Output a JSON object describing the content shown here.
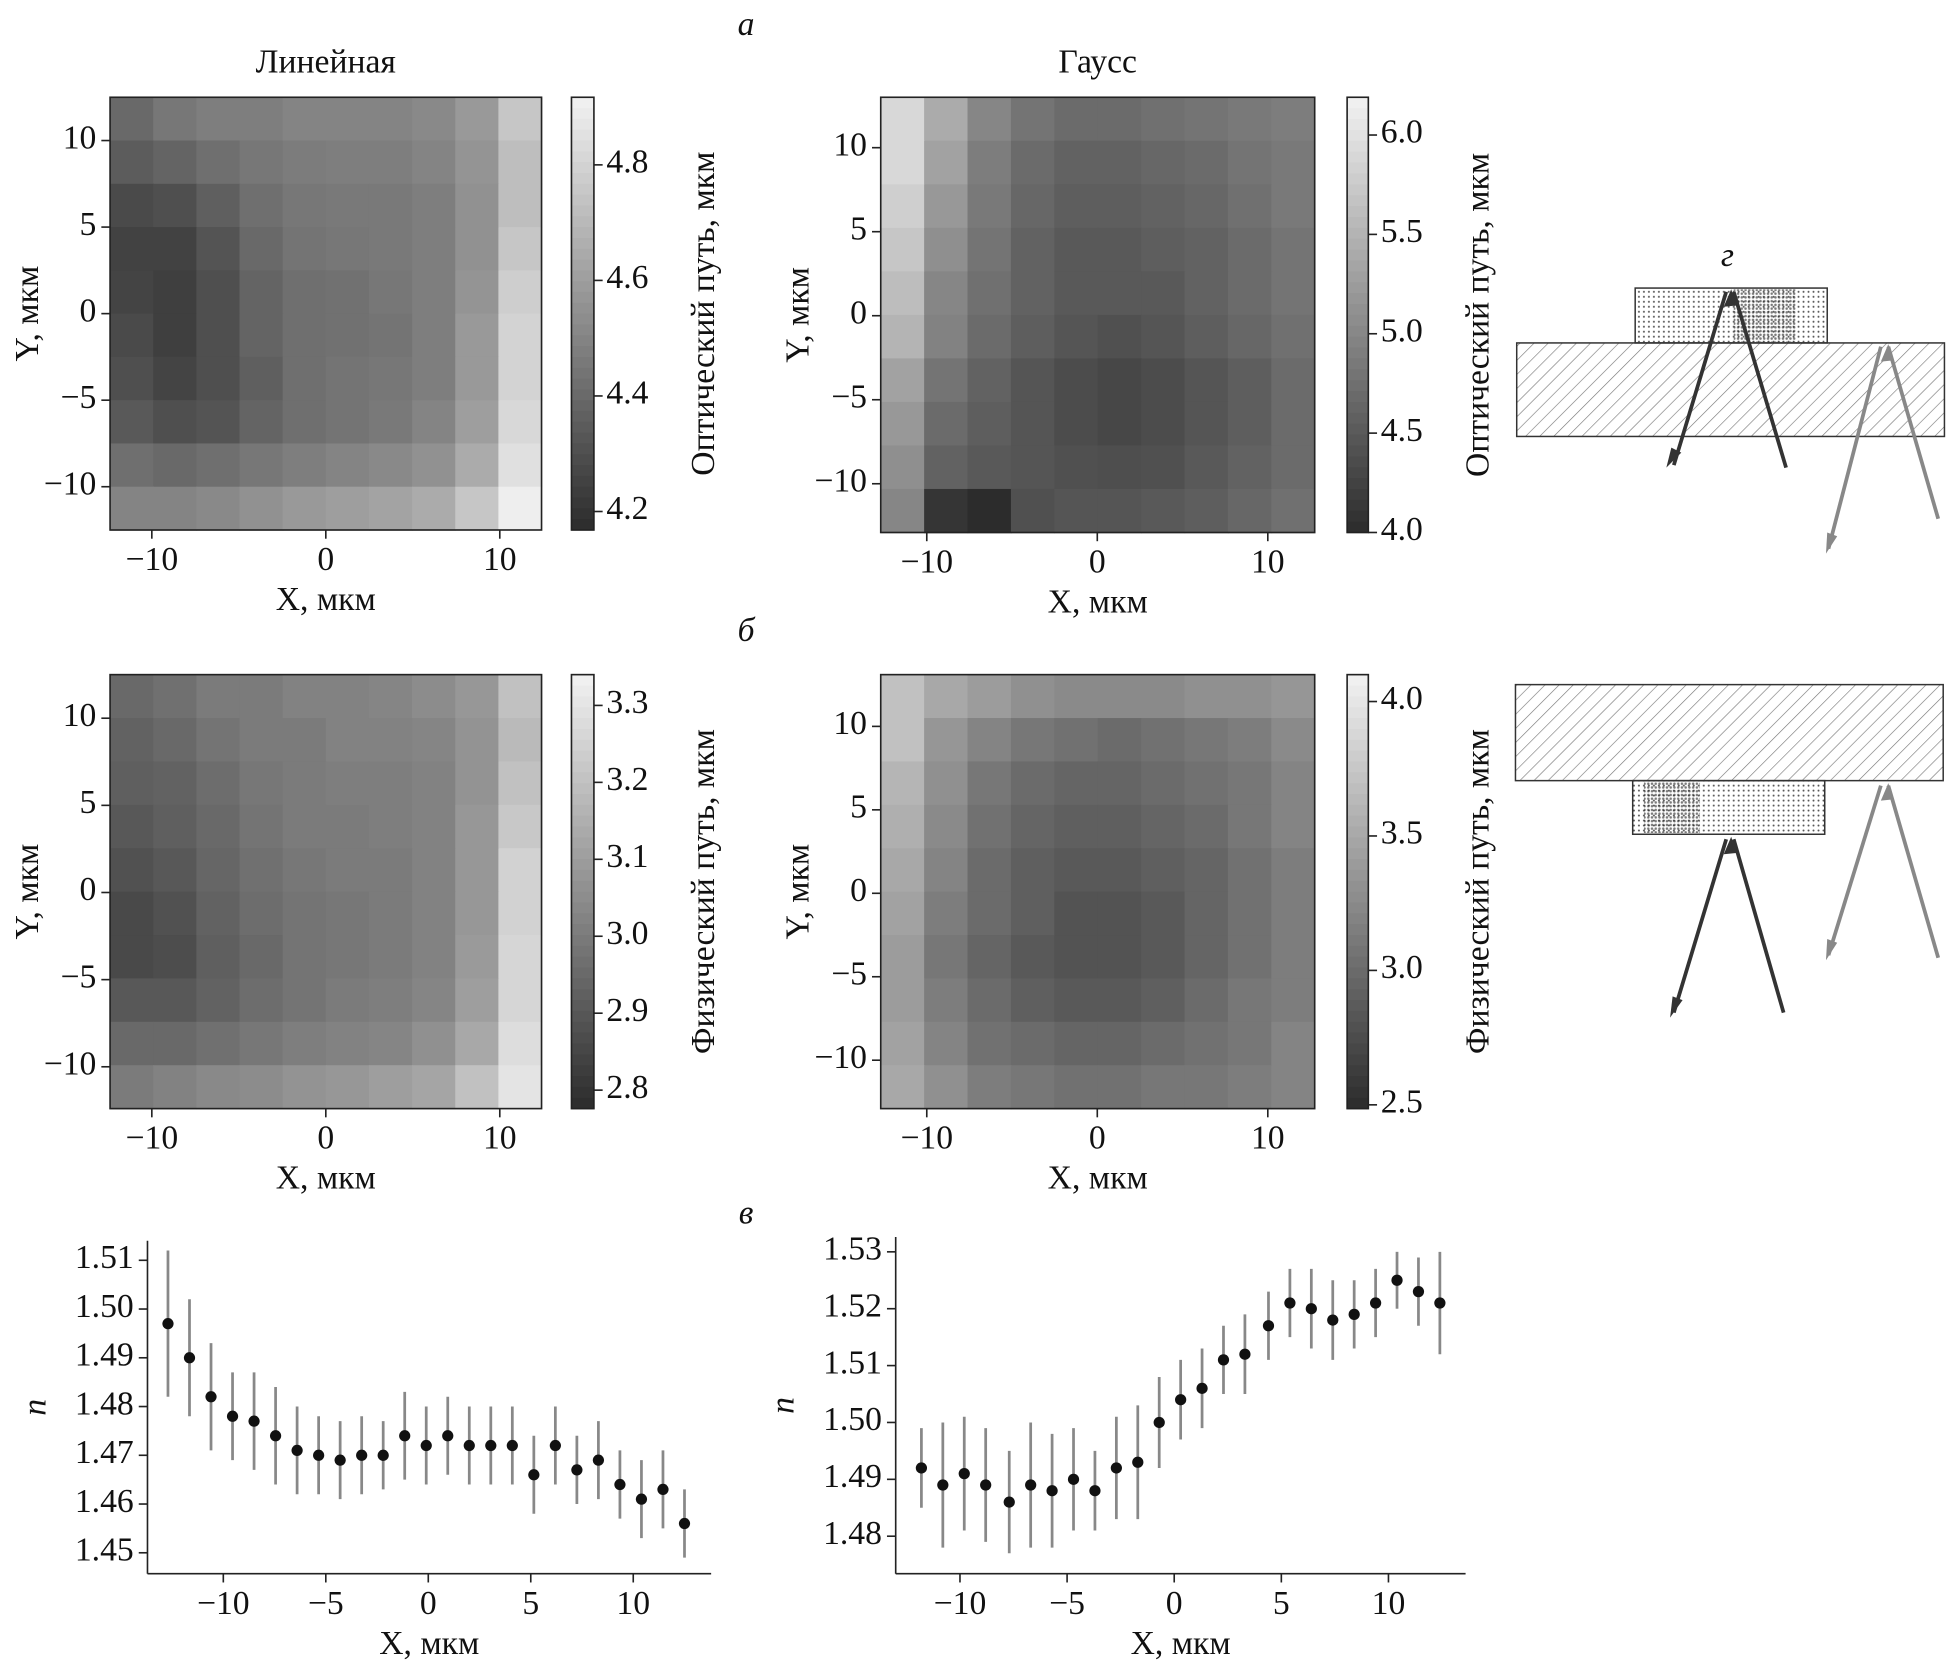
{
  "panel_labels": {
    "a": "а",
    "b": "б",
    "c": "в",
    "d": "г"
  },
  "chart_data": [
    {
      "type": "heatmap",
      "title": "Линейная",
      "xlabel": "X, мкм",
      "ylabel": "Y, мкм",
      "colorbar_label": "Оптический путь, мкм",
      "xlim": [
        -12.4,
        12.4
      ],
      "ylim": [
        -12.5,
        12.5
      ],
      "xticks": [
        {
          "value": -10,
          "label": "−10"
        },
        0,
        10
      ],
      "yticks": [
        10,
        5,
        0,
        {
          "value": -5,
          "label": "−5"
        },
        {
          "value": -10,
          "label": "−10"
        }
      ],
      "zlim": [
        4.168,
        4.917
      ],
      "zticks": [
        4.2,
        4.4,
        4.6,
        4.8
      ],
      "cmap": [
        "#2c2c2c",
        "#f2f2f2"
      ],
      "z": [
        [
          4.4,
          4.45,
          4.48,
          4.48,
          4.5,
          4.5,
          4.5,
          4.52,
          4.58,
          4.75
        ],
        [
          4.35,
          4.38,
          4.42,
          4.45,
          4.47,
          4.48,
          4.48,
          4.5,
          4.56,
          4.72
        ],
        [
          4.28,
          4.3,
          4.36,
          4.42,
          4.45,
          4.46,
          4.46,
          4.48,
          4.55,
          4.72
        ],
        [
          4.25,
          4.25,
          4.32,
          4.4,
          4.44,
          4.45,
          4.46,
          4.48,
          4.55,
          4.75
        ],
        [
          4.26,
          4.24,
          4.3,
          4.38,
          4.42,
          4.43,
          4.45,
          4.48,
          4.56,
          4.78
        ],
        [
          4.28,
          4.24,
          4.3,
          4.38,
          4.42,
          4.43,
          4.44,
          4.48,
          4.58,
          4.8
        ],
        [
          4.3,
          4.26,
          4.3,
          4.36,
          4.42,
          4.44,
          4.45,
          4.48,
          4.58,
          4.8
        ],
        [
          4.34,
          4.3,
          4.32,
          4.38,
          4.42,
          4.44,
          4.46,
          4.5,
          4.6,
          4.82
        ],
        [
          4.42,
          4.4,
          4.42,
          4.45,
          4.48,
          4.5,
          4.52,
          4.55,
          4.65,
          4.85
        ],
        [
          4.5,
          4.5,
          4.52,
          4.55,
          4.58,
          4.6,
          4.62,
          4.65,
          4.75,
          4.9
        ]
      ]
    },
    {
      "type": "heatmap",
      "title": "Гаусс",
      "xlabel": "X, мкм",
      "ylabel": "Y, мкм",
      "colorbar_label": "Оптический путь, мкм",
      "xlim": [
        -12.7,
        12.75
      ],
      "ylim": [
        -12.9,
        13.0
      ],
      "xticks": [
        {
          "value": -10,
          "label": "−10"
        },
        0,
        10
      ],
      "yticks": [
        10,
        5,
        0,
        {
          "value": -5,
          "label": "−5"
        },
        {
          "value": -10,
          "label": "−10"
        }
      ],
      "zlim": [
        4.0,
        6.19
      ],
      "zticks": [
        {
          "value": 4,
          "label": "4.0"
        },
        4.5,
        {
          "value": 5,
          "label": "5.0"
        },
        5.5,
        {
          "value": 6,
          "label": "6.0"
        }
      ],
      "cmap": [
        "#2c2c2c",
        "#f2f2f2"
      ],
      "z": [
        [
          5.9,
          5.4,
          5.0,
          4.8,
          4.7,
          4.7,
          4.75,
          4.8,
          4.85,
          4.9
        ],
        [
          5.9,
          5.3,
          4.9,
          4.7,
          4.6,
          4.6,
          4.65,
          4.7,
          4.8,
          4.85
        ],
        [
          5.8,
          5.2,
          4.85,
          4.65,
          4.55,
          4.55,
          4.6,
          4.65,
          4.75,
          4.85
        ],
        [
          5.7,
          5.1,
          4.8,
          4.6,
          4.5,
          4.5,
          4.55,
          4.6,
          4.7,
          4.8
        ],
        [
          5.6,
          5.0,
          4.75,
          4.6,
          4.5,
          4.5,
          4.5,
          4.6,
          4.7,
          4.8
        ],
        [
          5.5,
          4.95,
          4.7,
          4.55,
          4.45,
          4.4,
          4.45,
          4.55,
          4.65,
          4.75
        ],
        [
          5.3,
          4.8,
          4.6,
          4.45,
          4.35,
          4.3,
          4.35,
          4.45,
          4.55,
          4.7
        ],
        [
          5.2,
          4.7,
          4.55,
          4.45,
          4.35,
          4.3,
          4.35,
          4.45,
          4.55,
          4.7
        ],
        [
          5.1,
          4.6,
          4.5,
          4.45,
          4.4,
          4.38,
          4.4,
          4.5,
          4.6,
          4.7
        ],
        [
          5.0,
          4.1,
          4.0,
          4.4,
          4.45,
          4.45,
          4.5,
          4.55,
          4.65,
          4.75
        ]
      ]
    },
    {
      "type": "heatmap",
      "xlabel": "X, мкм",
      "ylabel": "Y, мкм",
      "colorbar_label": "Физический путь, мкм",
      "xlim": [
        -12.4,
        12.4
      ],
      "ylim": [
        -12.4,
        12.5
      ],
      "xticks": [
        {
          "value": -10,
          "label": "−10"
        },
        0,
        10
      ],
      "yticks": [
        10,
        5,
        0,
        {
          "value": -5,
          "label": "−5"
        },
        {
          "value": -10,
          "label": "−10"
        }
      ],
      "zlim": [
        2.776,
        3.34
      ],
      "zticks": [
        2.8,
        2.9,
        {
          "value": 3,
          "label": "3.0"
        },
        3.1,
        3.2,
        3.3
      ],
      "cmap": [
        "#2c2c2c",
        "#f2f2f2"
      ],
      "z": [
        [
          2.95,
          2.97,
          3.0,
          3.0,
          3.02,
          3.02,
          3.03,
          3.05,
          3.08,
          3.2
        ],
        [
          2.93,
          2.95,
          2.98,
          3.0,
          3.0,
          3.02,
          3.02,
          3.03,
          3.07,
          3.18
        ],
        [
          2.92,
          2.93,
          2.96,
          2.99,
          3.0,
          3.01,
          3.01,
          3.02,
          3.07,
          3.2
        ],
        [
          2.9,
          2.92,
          2.95,
          2.98,
          3.0,
          3.0,
          3.01,
          3.02,
          3.08,
          3.22
        ],
        [
          2.88,
          2.9,
          2.94,
          2.97,
          2.99,
          3.0,
          3.0,
          3.02,
          3.08,
          3.25
        ],
        [
          2.86,
          2.88,
          2.93,
          2.96,
          2.98,
          2.99,
          3.0,
          3.02,
          3.08,
          3.25
        ],
        [
          2.86,
          2.87,
          2.92,
          2.95,
          2.98,
          2.99,
          3.0,
          3.02,
          3.09,
          3.26
        ],
        [
          2.9,
          2.9,
          2.93,
          2.96,
          2.98,
          3.0,
          3.01,
          3.03,
          3.1,
          3.26
        ],
        [
          2.95,
          2.95,
          2.97,
          2.99,
          3.01,
          3.02,
          3.03,
          3.06,
          3.13,
          3.28
        ],
        [
          3.0,
          3.02,
          3.04,
          3.05,
          3.07,
          3.08,
          3.1,
          3.12,
          3.2,
          3.3
        ]
      ]
    },
    {
      "type": "heatmap",
      "xlabel": "X, мкм",
      "ylabel": "Y, мкм",
      "colorbar_label": "Физический путь, мкм",
      "xlim": [
        -12.7,
        12.75
      ],
      "ylim": [
        -12.9,
        13.1
      ],
      "xticks": [
        {
          "value": -10,
          "label": "−10"
        },
        0,
        10
      ],
      "yticks": [
        10,
        5,
        0,
        {
          "value": -5,
          "label": "−5"
        },
        {
          "value": -10,
          "label": "−10"
        }
      ],
      "zlim": [
        2.486,
        4.1
      ],
      "zticks": [
        2.5,
        {
          "value": 3,
          "label": "3.0"
        },
        3.5,
        {
          "value": 4,
          "label": "4.0"
        }
      ],
      "cmap": [
        "#2c2c2c",
        "#f2f2f2"
      ],
      "z": [
        [
          3.7,
          3.5,
          3.4,
          3.3,
          3.25,
          3.25,
          3.25,
          3.3,
          3.3,
          3.35
        ],
        [
          3.7,
          3.35,
          3.2,
          3.1,
          3.05,
          3.0,
          3.05,
          3.1,
          3.15,
          3.25
        ],
        [
          3.6,
          3.3,
          3.1,
          3.0,
          2.95,
          2.95,
          3.0,
          3.05,
          3.1,
          3.2
        ],
        [
          3.55,
          3.25,
          3.05,
          2.95,
          2.9,
          2.9,
          2.95,
          3.0,
          3.1,
          3.2
        ],
        [
          3.5,
          3.2,
          3.0,
          2.9,
          2.85,
          2.85,
          2.9,
          2.95,
          3.05,
          3.15
        ],
        [
          3.45,
          3.15,
          3.0,
          2.9,
          2.8,
          2.8,
          2.85,
          2.95,
          3.05,
          3.15
        ],
        [
          3.4,
          3.1,
          2.95,
          2.85,
          2.8,
          2.8,
          2.85,
          2.95,
          3.05,
          3.15
        ],
        [
          3.4,
          3.15,
          3.0,
          2.9,
          2.85,
          2.85,
          2.9,
          3.0,
          3.1,
          3.15
        ],
        [
          3.45,
          3.2,
          3.05,
          3.0,
          2.95,
          2.95,
          3.0,
          3.05,
          3.1,
          3.2
        ],
        [
          3.5,
          3.3,
          3.15,
          3.1,
          3.05,
          3.05,
          3.1,
          3.1,
          3.15,
          3.2
        ]
      ]
    },
    {
      "type": "errorbar",
      "xlabel": "X, мкм",
      "ylabel": "n",
      "color": "#111111",
      "error_color": "#888888",
      "xlim": [
        -13.7,
        13.8
      ],
      "ylim": [
        1.4457,
        1.514
      ],
      "xticks": [
        {
          "value": -10,
          "label": "−10"
        },
        {
          "value": -5,
          "label": "−5"
        },
        0,
        5,
        10
      ],
      "yticks": [
        1.45,
        1.46,
        1.47,
        1.48,
        1.49,
        {
          "value": 1.5,
          "label": "1.50"
        },
        1.51
      ],
      "x": [
        -12.7,
        -11.65,
        -10.6,
        -9.55,
        -8.5,
        -7.45,
        -6.4,
        -5.35,
        -4.3,
        -3.25,
        -2.2,
        -1.15,
        -0.1,
        0.95,
        2.0,
        3.05,
        4.1,
        5.15,
        6.2,
        7.25,
        8.3,
        9.35,
        10.4,
        11.45,
        12.5
      ],
      "values": [
        1.497,
        1.49,
        1.482,
        1.478,
        1.477,
        1.474,
        1.471,
        1.47,
        1.469,
        1.47,
        1.47,
        1.474,
        1.472,
        1.474,
        1.472,
        1.472,
        1.472,
        1.466,
        1.472,
        1.467,
        1.469,
        1.464,
        1.461,
        1.463,
        1.456
      ],
      "errors": [
        0.015,
        0.012,
        0.011,
        0.009,
        0.01,
        0.01,
        0.009,
        0.008,
        0.008,
        0.008,
        0.007,
        0.009,
        0.008,
        0.008,
        0.008,
        0.008,
        0.008,
        0.008,
        0.008,
        0.007,
        0.008,
        0.007,
        0.008,
        0.008,
        0.007
      ]
    },
    {
      "type": "errorbar",
      "xlabel": "X, мкм",
      "ylabel": "n",
      "color": "#111111",
      "error_color": "#888888",
      "xlim": [
        -13.0,
        13.6
      ],
      "ylim": [
        1.4734,
        1.5326
      ],
      "xticks": [
        {
          "value": -10,
          "label": "−10"
        },
        {
          "value": -5,
          "label": "−5"
        },
        0,
        5,
        10
      ],
      "yticks": [
        1.48,
        1.49,
        {
          "value": 1.5,
          "label": "1.50"
        },
        1.51,
        1.52,
        1.53
      ],
      "x": [
        -11.8,
        -10.8,
        -9.8,
        -8.8,
        -7.7,
        -6.7,
        -5.7,
        -4.7,
        -3.7,
        -2.7,
        -1.7,
        -0.7,
        0.3,
        1.3,
        2.3,
        3.3,
        4.4,
        5.4,
        6.4,
        7.4,
        8.4,
        9.4,
        10.4,
        11.4,
        12.4
      ],
      "values": [
        1.492,
        1.489,
        1.491,
        1.489,
        1.486,
        1.489,
        1.488,
        1.49,
        1.488,
        1.492,
        1.493,
        1.5,
        1.504,
        1.506,
        1.511,
        1.512,
        1.517,
        1.521,
        1.52,
        1.518,
        1.519,
        1.521,
        1.525,
        1.523,
        1.521
      ],
      "errors": [
        0.007,
        0.011,
        0.01,
        0.01,
        0.009,
        0.011,
        0.01,
        0.009,
        0.007,
        0.009,
        0.01,
        0.008,
        0.007,
        0.007,
        0.006,
        0.007,
        0.006,
        0.006,
        0.007,
        0.007,
        0.006,
        0.006,
        0.005,
        0.006,
        0.009
      ]
    }
  ]
}
